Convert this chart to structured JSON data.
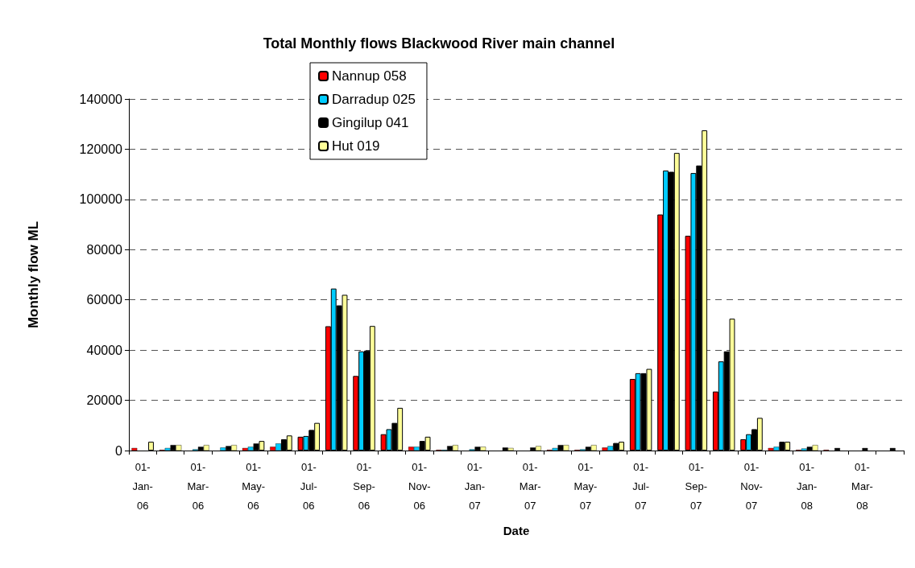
{
  "chart_data": {
    "type": "bar",
    "title": "Total Monthly flows Blackwood River main channel",
    "xlabel": "Date",
    "ylabel": "Monthly flow ML",
    "categories": [
      "01-\nJan-\n06",
      null,
      "01-\nMar-\n06",
      null,
      "01-\nMay-\n06",
      null,
      "01-\nJul-\n06",
      null,
      "01-\nSep-\n06",
      null,
      "01-\nNov-\n06",
      null,
      "01-\nJan-\n07",
      null,
      "01-\nMar-\n07",
      null,
      "01-\nMay-\n07",
      null,
      "01-\nJul-\n07",
      null,
      "01-\nSep-\n07",
      null,
      "01-\nNov-\n07",
      null,
      "01-\nJan-\n08",
      null,
      "01-\nMar-\n08",
      null
    ],
    "series": [
      {
        "name": "Nannup 058",
        "color": "#ff0000",
        "values": [
          1000,
          300,
          0,
          0,
          1000,
          1500,
          5500,
          49500,
          29700,
          6500,
          1500,
          300,
          0,
          0,
          0,
          300,
          300,
          1200,
          28500,
          94000,
          85500,
          23500,
          4500,
          1000,
          300,
          300,
          0,
          0
        ]
      },
      {
        "name": "Darradup 025",
        "color": "#00ccff",
        "values": [
          0,
          1000,
          500,
          1200,
          1500,
          2800,
          5800,
          64500,
          39500,
          8500,
          1500,
          300,
          500,
          0,
          0,
          1000,
          500,
          1800,
          30800,
          111500,
          110500,
          35500,
          6500,
          1500,
          800,
          0,
          0,
          0
        ]
      },
      {
        "name": "Gingilup 041",
        "color": "#000000",
        "values": [
          0,
          2200,
          1500,
          1800,
          2800,
          4500,
          8200,
          57800,
          39800,
          11000,
          3800,
          1800,
          1500,
          1200,
          1200,
          2200,
          1500,
          3000,
          30800,
          111000,
          113500,
          39500,
          8500,
          3500,
          1500,
          1000,
          1000,
          1000
        ]
      },
      {
        "name": "Hut 019",
        "color": "#ffff99",
        "values": [
          3500,
          2200,
          2200,
          2200,
          3800,
          6000,
          11000,
          62000,
          49600,
          17000,
          5500,
          2200,
          1500,
          1000,
          1800,
          2200,
          2200,
          3500,
          32500,
          118500,
          127500,
          52500,
          13000,
          3500,
          2200,
          0,
          0,
          0
        ]
      }
    ],
    "ylim": [
      0,
      140000
    ],
    "yticks": [
      0,
      20000,
      40000,
      60000,
      80000,
      100000,
      120000,
      140000
    ],
    "grid": "y",
    "legend": "top"
  }
}
